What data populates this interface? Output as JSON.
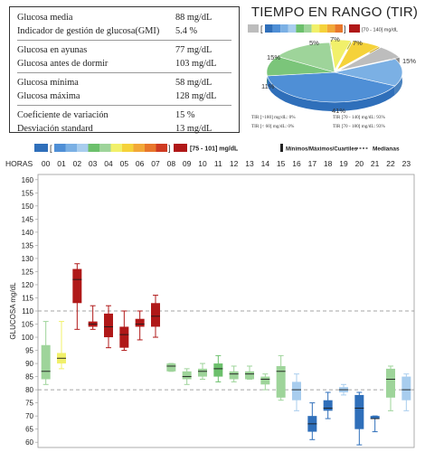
{
  "stats": {
    "groups": [
      [
        {
          "label": "Glucosa media",
          "value": "88 mg/dL"
        },
        {
          "label": "Indicador de gestión de glucosa(GMI)",
          "value": "5.4 %"
        }
      ],
      [
        {
          "label": "Glucosa en ayunas",
          "value": "77 mg/dL"
        },
        {
          "label": "Glucosa antes de dormir",
          "value": "103 mg/dL"
        }
      ],
      [
        {
          "label": "Glucosa mínima",
          "value": "58 mg/dL"
        },
        {
          "label": "Glucosa máxima",
          "value": "128 mg/dL"
        }
      ],
      [
        {
          "label": "Coeficiente de variación",
          "value": "15 %"
        },
        {
          "label": "Desviación standard",
          "value": "13 mg/dL"
        }
      ]
    ]
  },
  "tir": {
    "title": "TIEMPO EN RANGO (TIR)",
    "legend_range": "[70 - 140] mg/dL",
    "slice_labels": [
      "5%",
      "7%",
      "7%",
      "15%",
      "41%",
      "11%",
      "15%"
    ],
    "stats": [
      "TIR [>180] mg/dL: 0%",
      "TIR [< 60] mg/dL: 0%",
      "TIR [70 - 140] mg/dL: 93%",
      "TIR [70 - 180] mg/dL: 93%"
    ]
  },
  "colors": {
    "scale": [
      "#2f6fba",
      "#4f8fd6",
      "#7bb0e4",
      "#a8cdee",
      "#6cc06c",
      "#9ed49a",
      "#f1f06a",
      "#f5d23a",
      "#f2a838",
      "#e8772c",
      "#cf3b22",
      "#b01818"
    ],
    "grey": "#bdbdbd",
    "red": "#b01818"
  },
  "legend": {
    "range_label": "[75 - 101] mg/dL",
    "minmax_label": "Mínimos/Máximos/Cuartiles",
    "median_label": "Medianas"
  },
  "chart_data": {
    "type": "box",
    "xlabel": "HORAS",
    "ylabel": "GLUCOSA mg/dL",
    "ylim": [
      58,
      162
    ],
    "yticks": [
      60,
      65,
      70,
      75,
      80,
      85,
      90,
      95,
      100,
      105,
      110,
      115,
      120,
      125,
      130,
      135,
      140,
      145,
      150,
      155,
      160
    ],
    "reference_lines": [
      80,
      110
    ],
    "categories": [
      "00",
      "01",
      "02",
      "03",
      "04",
      "05",
      "06",
      "07",
      "08",
      "09",
      "10",
      "11",
      "12",
      "13",
      "14",
      "15",
      "16",
      "17",
      "18",
      "19",
      "20",
      "21",
      "22",
      "23"
    ],
    "boxes": [
      {
        "min": 82,
        "q1": 84,
        "median": 87,
        "q3": 97,
        "max": 106,
        "color": "#9ed49a"
      },
      {
        "min": 88,
        "q1": 90,
        "median": 92,
        "q3": 94,
        "max": 106,
        "color": "#f1f06a"
      },
      {
        "min": 103,
        "q1": 113,
        "median": 122,
        "q3": 126,
        "max": 128,
        "color": "#b01818"
      },
      {
        "min": 103,
        "q1": 104,
        "median": 105,
        "q3": 106,
        "max": 112,
        "color": "#b01818"
      },
      {
        "min": 96,
        "q1": 100,
        "median": 104,
        "q3": 109,
        "max": 112,
        "color": "#b01818"
      },
      {
        "min": 95,
        "q1": 96,
        "median": 101,
        "q3": 104,
        "max": 110,
        "color": "#b01818"
      },
      {
        "min": 99,
        "q1": 104,
        "median": 105,
        "q3": 107,
        "max": 110,
        "color": "#b01818"
      },
      {
        "min": 100,
        "q1": 104,
        "median": 108,
        "q3": 113,
        "max": 116,
        "color": "#b01818"
      },
      {
        "min": 87,
        "q1": 87,
        "median": 89,
        "q3": 90,
        "max": 90,
        "color": "#9ed49a"
      },
      {
        "min": 82,
        "q1": 84,
        "median": 85,
        "q3": 87,
        "max": 88,
        "color": "#9ed49a"
      },
      {
        "min": 84,
        "q1": 85,
        "median": 87,
        "q3": 88,
        "max": 90,
        "color": "#9ed49a"
      },
      {
        "min": 83,
        "q1": 85,
        "median": 88,
        "q3": 90,
        "max": 93,
        "color": "#6cc06c"
      },
      {
        "min": 83,
        "q1": 84,
        "median": 86,
        "q3": 87,
        "max": 89,
        "color": "#9ed49a"
      },
      {
        "min": 84,
        "q1": 84,
        "median": 86,
        "q3": 87,
        "max": 89,
        "color": "#9ed49a"
      },
      {
        "min": 80,
        "q1": 82,
        "median": 84,
        "q3": 85,
        "max": 86,
        "color": "#9ed49a"
      },
      {
        "min": 76,
        "q1": 77,
        "median": 87,
        "q3": 89,
        "max": 93,
        "color": "#9ed49a"
      },
      {
        "min": 72,
        "q1": 76,
        "median": 80,
        "q3": 83,
        "max": 86,
        "color": "#a8cdee"
      },
      {
        "min": 61,
        "q1": 64,
        "median": 67,
        "q3": 70,
        "max": 75,
        "color": "#2f6fba"
      },
      {
        "min": 69,
        "q1": 72,
        "median": 73,
        "q3": 76,
        "max": 79,
        "color": "#2f6fba"
      },
      {
        "min": 78,
        "q1": 79,
        "median": 80,
        "q3": 81,
        "max": 82,
        "color": "#a8cdee"
      },
      {
        "min": 59,
        "q1": 65,
        "median": 73,
        "q3": 78,
        "max": 79,
        "color": "#2f6fba"
      },
      {
        "min": 64,
        "q1": 69,
        "median": 69,
        "q3": 70,
        "max": 70,
        "color": "#2f6fba"
      },
      {
        "min": 72,
        "q1": 77,
        "median": 84,
        "q3": 88,
        "max": 89,
        "color": "#9ed49a"
      },
      {
        "min": 72,
        "q1": 76,
        "median": 80,
        "q3": 85,
        "max": 86,
        "color": "#a8cdee"
      }
    ]
  }
}
